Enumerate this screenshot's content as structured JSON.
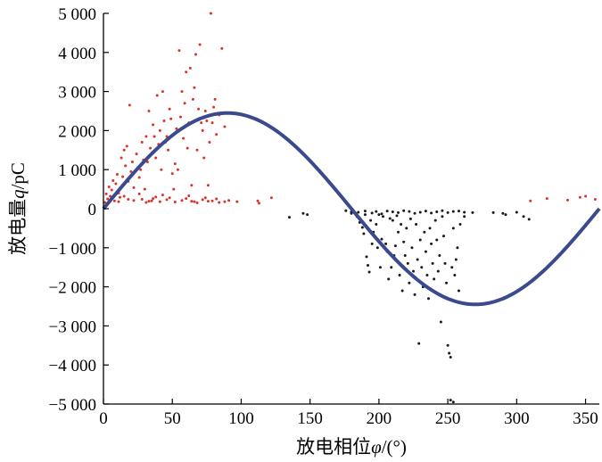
{
  "chart_data": {
    "type": "scatter",
    "title": "",
    "xlabel_prefix": "放电相位",
    "xlabel_symbol": "φ",
    "xlabel_suffix": "/(°)",
    "ylabel_prefix": "放电量",
    "ylabel_symbol": "q",
    "ylabel_suffix": "/pC",
    "xlim": [
      0,
      360
    ],
    "ylim": [
      -5000,
      5000
    ],
    "x_ticks": [
      0,
      50,
      100,
      150,
      200,
      250,
      300,
      350
    ],
    "x_tick_labels": [
      "0",
      "50",
      "100",
      "150",
      "200",
      "250",
      "300",
      "350"
    ],
    "y_ticks": [
      5000,
      4000,
      3000,
      2000,
      1000,
      0,
      -1000,
      -2000,
      -3000,
      -4000,
      -5000
    ],
    "y_tick_labels": [
      "5 000",
      "4 000",
      "3 000",
      "2 000",
      "1 000",
      "0",
      "−1 000",
      "−2 000",
      "−3 000",
      "−4 000",
      "−5 000"
    ],
    "grid": false,
    "legend": "none",
    "series": [
      {
        "color": "#d9332b",
        "points": [
          [
            1,
            160
          ],
          [
            2,
            380
          ],
          [
            3,
            250
          ],
          [
            4,
            560
          ],
          [
            5,
            320
          ],
          [
            6,
            480
          ],
          [
            7,
            720
          ],
          [
            8,
            200
          ],
          [
            9,
            640
          ],
          [
            10,
            880
          ],
          [
            11,
            400
          ],
          [
            12,
            290
          ],
          [
            13,
            1300
          ],
          [
            14,
            820
          ],
          [
            15,
            1500
          ],
          [
            16,
            1100
          ],
          [
            17,
            1600
          ],
          [
            18,
            700
          ],
          [
            19,
            2650
          ],
          [
            20,
            950
          ],
          [
            21,
            1200
          ],
          [
            22,
            540
          ],
          [
            24,
            1400
          ],
          [
            25,
            1050
          ],
          [
            26,
            800
          ],
          [
            27,
            1000
          ],
          [
            28,
            1700
          ],
          [
            29,
            1250
          ],
          [
            30,
            500
          ],
          [
            31,
            1850
          ],
          [
            32,
            1200
          ],
          [
            33,
            2500
          ],
          [
            34,
            1550
          ],
          [
            35,
            200
          ],
          [
            36,
            2150
          ],
          [
            37,
            1850
          ],
          [
            38,
            1300
          ],
          [
            39,
            2900
          ],
          [
            40,
            1650
          ],
          [
            41,
            2000
          ],
          [
            42,
            1000
          ],
          [
            43,
            3000
          ],
          [
            44,
            2250
          ],
          [
            45,
            1700
          ],
          [
            46,
            1850
          ],
          [
            47,
            1500
          ],
          [
            48,
            2550
          ],
          [
            49,
            2300
          ],
          [
            50,
            900
          ],
          [
            51,
            500
          ],
          [
            52,
            1150
          ],
          [
            53,
            2050
          ],
          [
            54,
            1000
          ],
          [
            55,
            4050
          ],
          [
            56,
            2350
          ],
          [
            57,
            3000
          ],
          [
            58,
            1800
          ],
          [
            59,
            2700
          ],
          [
            60,
            3500
          ],
          [
            61,
            1550
          ],
          [
            62,
            2200
          ],
          [
            63,
            3600
          ],
          [
            64,
            600
          ],
          [
            65,
            2800
          ],
          [
            66,
            3100
          ],
          [
            67,
            3950
          ],
          [
            68,
            1500
          ],
          [
            69,
            2550
          ],
          [
            70,
            4200
          ],
          [
            71,
            2200
          ],
          [
            72,
            2000
          ],
          [
            73,
            1300
          ],
          [
            74,
            2500
          ],
          [
            75,
            2250
          ],
          [
            76,
            600
          ],
          [
            77,
            1700
          ],
          [
            78,
            5000
          ],
          [
            79,
            2200
          ],
          [
            80,
            2600
          ],
          [
            81,
            2800
          ],
          [
            82,
            1900
          ],
          [
            84,
            2400
          ],
          [
            86,
            4100
          ],
          [
            88,
            2100
          ],
          [
            22,
            210
          ],
          [
            28,
            240
          ],
          [
            33,
            190
          ],
          [
            36,
            260
          ],
          [
            41,
            180
          ],
          [
            46,
            230
          ],
          [
            52,
            170
          ],
          [
            57,
            210
          ],
          [
            60,
            260
          ],
          [
            64,
            190
          ],
          [
            68,
            150
          ],
          [
            72,
            230
          ],
          [
            74,
            280
          ],
          [
            79,
            200
          ],
          [
            82,
            250
          ],
          [
            88,
            180
          ],
          [
            97,
            180
          ],
          [
            112,
            200
          ],
          [
            122,
            280
          ],
          [
            310,
            200
          ],
          [
            322,
            260
          ],
          [
            337,
            220
          ],
          [
            346,
            290
          ],
          [
            350,
            320
          ],
          [
            357,
            240
          ],
          [
            3,
            140
          ],
          [
            7,
            290
          ],
          [
            11,
            180
          ],
          [
            15,
            320
          ],
          [
            18,
            240
          ],
          [
            26,
            380
          ],
          [
            31,
            160
          ],
          [
            38,
            300
          ],
          [
            43,
            350
          ],
          [
            48,
            280
          ],
          [
            62,
            330
          ],
          [
            66,
            180
          ],
          [
            76,
            190
          ],
          [
            84,
            160
          ],
          [
            91,
            210
          ],
          [
            113,
            140
          ]
        ]
      },
      {
        "color": "#1a1a1a",
        "points": [
          [
            135,
            -220
          ],
          [
            145,
            -120
          ],
          [
            148,
            -150
          ],
          [
            176,
            -50
          ],
          [
            180,
            -120
          ],
          [
            184,
            -200
          ],
          [
            186,
            -350
          ],
          [
            188,
            -480
          ],
          [
            189,
            -640
          ],
          [
            190,
            -150
          ],
          [
            191,
            -1230
          ],
          [
            192,
            -1450
          ],
          [
            193,
            -1620
          ],
          [
            194,
            -300
          ],
          [
            195,
            -900
          ],
          [
            196,
            -600
          ],
          [
            198,
            -400
          ],
          [
            199,
            -1000
          ],
          [
            200,
            -150
          ],
          [
            201,
            -1500
          ],
          [
            202,
            -780
          ],
          [
            203,
            -200
          ],
          [
            205,
            -900
          ],
          [
            206,
            -1100
          ],
          [
            207,
            -1800
          ],
          [
            208,
            -250
          ],
          [
            209,
            -1500
          ],
          [
            210,
            -300
          ],
          [
            211,
            -1200
          ],
          [
            212,
            -950
          ],
          [
            213,
            -180
          ],
          [
            214,
            -600
          ],
          [
            215,
            -1700
          ],
          [
            216,
            -400
          ],
          [
            217,
            -2100
          ],
          [
            218,
            -850
          ],
          [
            219,
            -1200
          ],
          [
            220,
            -500
          ],
          [
            221,
            -1400
          ],
          [
            222,
            -1900
          ],
          [
            223,
            -260
          ],
          [
            224,
            -1000
          ],
          [
            225,
            -1600
          ],
          [
            226,
            -2200
          ],
          [
            227,
            -400
          ],
          [
            228,
            -1300
          ],
          [
            229,
            -3450
          ],
          [
            230,
            -800
          ],
          [
            231,
            -1500
          ],
          [
            232,
            -2000
          ],
          [
            233,
            -600
          ],
          [
            234,
            -1100
          ],
          [
            235,
            -1700
          ],
          [
            236,
            -2300
          ],
          [
            237,
            -500
          ],
          [
            238,
            -900
          ],
          [
            239,
            -1400
          ],
          [
            240,
            -1800
          ],
          [
            241,
            -300
          ],
          [
            242,
            -800
          ],
          [
            243,
            -1600
          ],
          [
            244,
            -1200
          ],
          [
            245,
            -2900
          ],
          [
            246,
            -200
          ],
          [
            247,
            -700
          ],
          [
            248,
            -1400
          ],
          [
            249,
            -1900
          ],
          [
            250,
            -3500
          ],
          [
            251,
            -3700
          ],
          [
            252,
            -3800
          ],
          [
            253,
            -1500
          ],
          [
            254,
            -500
          ],
          [
            255,
            -1700
          ],
          [
            256,
            -1300
          ],
          [
            257,
            -1000
          ],
          [
            258,
            -2100
          ],
          [
            259,
            -400
          ],
          [
            262,
            -200
          ],
          [
            268,
            -100
          ],
          [
            283,
            -100
          ],
          [
            290,
            -120
          ],
          [
            292,
            -150
          ],
          [
            300,
            -90
          ],
          [
            305,
            -200
          ],
          [
            309,
            -270
          ],
          [
            180,
            -80
          ],
          [
            185,
            -90
          ],
          [
            190,
            -60
          ],
          [
            195,
            -110
          ],
          [
            198,
            -70
          ],
          [
            202,
            -130
          ],
          [
            206,
            -60
          ],
          [
            210,
            -80
          ],
          [
            214,
            -100
          ],
          [
            218,
            -50
          ],
          [
            222,
            -70
          ],
          [
            226,
            -120
          ],
          [
            230,
            -90
          ],
          [
            234,
            -60
          ],
          [
            238,
            -110
          ],
          [
            242,
            -80
          ],
          [
            246,
            -50
          ],
          [
            250,
            -100
          ],
          [
            254,
            -70
          ],
          [
            258,
            -60
          ],
          [
            262,
            -90
          ],
          [
            252,
            -4900
          ],
          [
            254,
            -4950
          ]
        ]
      }
    ],
    "curve": {
      "type": "sine",
      "amplitude": 2450,
      "color": "#3b4a8f"
    }
  }
}
